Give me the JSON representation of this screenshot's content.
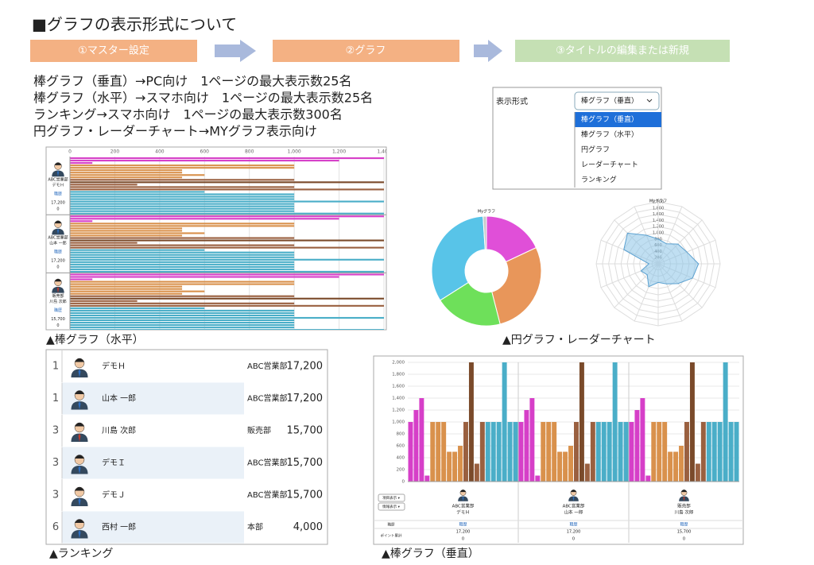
{
  "header": {
    "title": "■グラフの表示形式について",
    "steps": [
      "①マスター設定",
      "②グラフ",
      "③タイトルの編集または新規"
    ]
  },
  "notes": [
    "棒グラフ（垂直）→PC向け　1ページの最大表示数25名",
    "棒グラフ（水平）→スマホ向け　1ページの最大表示数25名",
    "ランキング→スマホ向け　1ページの最大表示数300名",
    "円グラフ・レーダーチャート→MYグラフ表示向け"
  ],
  "captions": {
    "hbar": "▲棒グラフ（水平）",
    "pie_radar": "▲円グラフ・レーダーチャート",
    "ranking": "▲ランキング",
    "vbar": "▲棒グラフ（垂直）"
  },
  "persons": [
    {
      "dept": "ABC営業部",
      "name": "デモＨ",
      "job": "職歴",
      "points": "17,200",
      "extra": "0"
    },
    {
      "dept": "ABC営業部",
      "name": "山本 一郎",
      "job": "職歴",
      "points": "17,200",
      "extra": "0"
    },
    {
      "dept": "販売部",
      "name": "川島 次郎",
      "job": "職歴",
      "points": "15,700",
      "extra": "0"
    }
  ],
  "dropdown": {
    "label": "表示形式",
    "selected": "棒グラフ（垂直）",
    "options": [
      "棒グラフ（垂直）",
      "棒グラフ（水平）",
      "円グラフ",
      "レーダーチャート",
      "ランキング"
    ]
  },
  "ranking": {
    "rows": [
      [
        "1",
        "デモＨ",
        "ABC営業部",
        "17,200"
      ],
      [
        "1",
        "山本 一郎",
        "ABC営業部",
        "17,200"
      ],
      [
        "3",
        "川島 次郎",
        "販売部",
        "15,700"
      ],
      [
        "3",
        "デモＩ",
        "ABC営業部",
        "15,700"
      ],
      [
        "3",
        "デモＪ",
        "ABC営業部",
        "15,700"
      ],
      [
        "6",
        "西村 一郎",
        "本部",
        "4,000"
      ]
    ]
  },
  "vbar_footer": {
    "buttons": [
      "項目表示 ▾",
      "情報表示 ▾"
    ],
    "rows": [
      "職歴",
      "ポイント累計"
    ]
  },
  "chart_data": [
    {
      "type": "hbar",
      "xlim": [
        0,
        1400
      ],
      "xticks": [
        0,
        200,
        400,
        600,
        800,
        {
          "value": 1000,
          "label": "1,000"
        },
        {
          "value": 1200,
          "label": "1,200"
        },
        {
          "value": 1400,
          "label": "1,400"
        }
      ],
      "grid": true,
      "values": [
        1400,
        1200,
        100,
        1000,
        1000,
        500,
        500,
        600,
        500,
        1000,
        1400,
        300,
        1000,
        1400,
        600,
        1000,
        1000,
        1000,
        1400,
        1000,
        1000,
        1000,
        1000,
        1400
      ],
      "colors": [
        "#d63fc8",
        "#d63fc8",
        "#d63fc8",
        "#d9914c",
        "#d9914c",
        "#d9914c",
        "#d9914c",
        "#d9914c",
        "#d9914c",
        "#9a6040",
        "#7a4a2a",
        "#9a6040",
        "#9a6040",
        "#9a6040",
        "#4aaec8",
        "#4aaec8",
        "#4aaec8",
        "#4aaec8",
        "#4aaec8",
        "#4aaec8",
        "#4aaec8",
        "#4aaec8",
        "#4aaec8",
        "#4aaec8"
      ]
    },
    {
      "type": "pie",
      "title": "Myグラフ",
      "values": [
        18,
        28,
        20,
        33,
        1
      ],
      "colors": [
        "#e04fd8",
        "#e8965a",
        "#6ee05a",
        "#58c4e8",
        "#c8c8c8"
      ]
    },
    {
      "type": "radar",
      "title": "Myグラフ",
      "rlim": [
        0,
        2000
      ],
      "rticks": [
        200,
        400,
        600,
        800,
        {
          "value": 1000,
          "label": "1,000"
        },
        {
          "value": 1200,
          "label": "1,200"
        },
        {
          "value": 1400,
          "label": "1,400"
        },
        {
          "value": 1600,
          "label": "1,600"
        },
        {
          "value": 1800,
          "label": "1,800"
        },
        {
          "value": 2000,
          "label": "2,000"
        }
      ],
      "values": [
        800,
        700,
        900,
        1000,
        1300,
        1200,
        900,
        700,
        600,
        800,
        500,
        600,
        300,
        1200,
        1400,
        1000
      ],
      "color": "#8cc4e8"
    },
    {
      "type": "vbar",
      "ylim": [
        0,
        2000
      ],
      "yticks": [
        0,
        200,
        400,
        600,
        800,
        {
          "value": 1000,
          "label": "1,000"
        },
        {
          "value": 1200,
          "label": "1,200"
        },
        {
          "value": 1400,
          "label": "1,400"
        },
        {
          "value": 1600,
          "label": "1,600"
        },
        {
          "value": 1800,
          "label": "1,800"
        },
        {
          "value": 2000,
          "label": "2,000"
        }
      ],
      "grid": true,
      "values": [
        1000,
        1200,
        1400,
        100,
        1000,
        1000,
        1000,
        500,
        500,
        600,
        1000,
        2000,
        300,
        1000,
        1000,
        1000,
        1000,
        2000,
        1000,
        1000
      ],
      "colors": [
        "#d63fc8",
        "#d63fc8",
        "#d63fc8",
        "#d63fc8",
        "#d9914c",
        "#d9914c",
        "#d9914c",
        "#d9914c",
        "#d9914c",
        "#d9914c",
        "#9a6040",
        "#7a4a2a",
        "#9a6040",
        "#9a6040",
        "#4aaec8",
        "#4aaec8",
        "#4aaec8",
        "#4aaec8",
        "#4aaec8",
        "#4aaec8"
      ]
    }
  ]
}
